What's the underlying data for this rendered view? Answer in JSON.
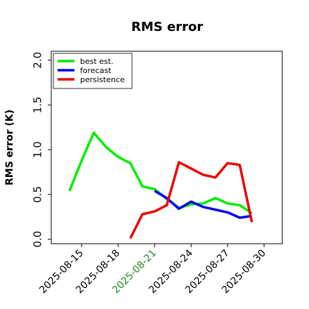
{
  "chart_data": {
    "type": "line",
    "title": "RMS error",
    "xlabel": "",
    "ylabel": "RMS error (K)",
    "ylim": [
      -0.05,
      2.1
    ],
    "xlim": [
      "2025-08-12T12:00",
      "2025-08-31T12:00"
    ],
    "yticks": [
      "0.0",
      "0.5",
      "1.0",
      "1.5",
      "2.0"
    ],
    "xticks": [
      "2025-08-15",
      "2025-08-18",
      "2025-08-21",
      "2025-08-24",
      "2025-08-27",
      "2025-08-30"
    ],
    "highlight_tick": "2025-08-21",
    "highlight_color": "#228b22",
    "grid": false,
    "legend_position": "top-left",
    "series": [
      {
        "name": "best est.",
        "color": "#00ee00",
        "points": [
          [
            "2025-08-14",
            0.54
          ],
          [
            "2025-08-15",
            0.88
          ],
          [
            "2025-08-16",
            1.19
          ],
          [
            "2025-08-17",
            1.03
          ],
          [
            "2025-08-18",
            0.92
          ],
          [
            "2025-08-19",
            0.85
          ],
          [
            "2025-08-20",
            0.59
          ],
          [
            "2025-08-21",
            0.56
          ],
          [
            "2025-08-22",
            0.45
          ],
          [
            "2025-08-23",
            0.35
          ],
          [
            "2025-08-24",
            0.39
          ],
          [
            "2025-08-25",
            0.4
          ],
          [
            "2025-08-26",
            0.46
          ],
          [
            "2025-08-27",
            0.4
          ],
          [
            "2025-08-28",
            0.38
          ],
          [
            "2025-08-29",
            0.29
          ]
        ]
      },
      {
        "name": "forecast",
        "color": "#0000ee",
        "points": [
          [
            "2025-08-21",
            0.54
          ],
          [
            "2025-08-22",
            0.46
          ],
          [
            "2025-08-23",
            0.34
          ],
          [
            "2025-08-24",
            0.42
          ],
          [
            "2025-08-25",
            0.36
          ],
          [
            "2025-08-26",
            0.33
          ],
          [
            "2025-08-27",
            0.3
          ],
          [
            "2025-08-28",
            0.24
          ],
          [
            "2025-08-29",
            0.26
          ]
        ]
      },
      {
        "name": "persistence",
        "color": "#ee0000",
        "points": [
          [
            "2025-08-19",
            0.01
          ],
          [
            "2025-08-20",
            0.28
          ],
          [
            "2025-08-21",
            0.31
          ],
          [
            "2025-08-22",
            0.38
          ],
          [
            "2025-08-23",
            0.86
          ],
          [
            "2025-08-24",
            0.79
          ],
          [
            "2025-08-25",
            0.72
          ],
          [
            "2025-08-26",
            0.69
          ],
          [
            "2025-08-27",
            0.85
          ],
          [
            "2025-08-28",
            0.83
          ],
          [
            "2025-08-29",
            0.19
          ]
        ]
      }
    ]
  }
}
